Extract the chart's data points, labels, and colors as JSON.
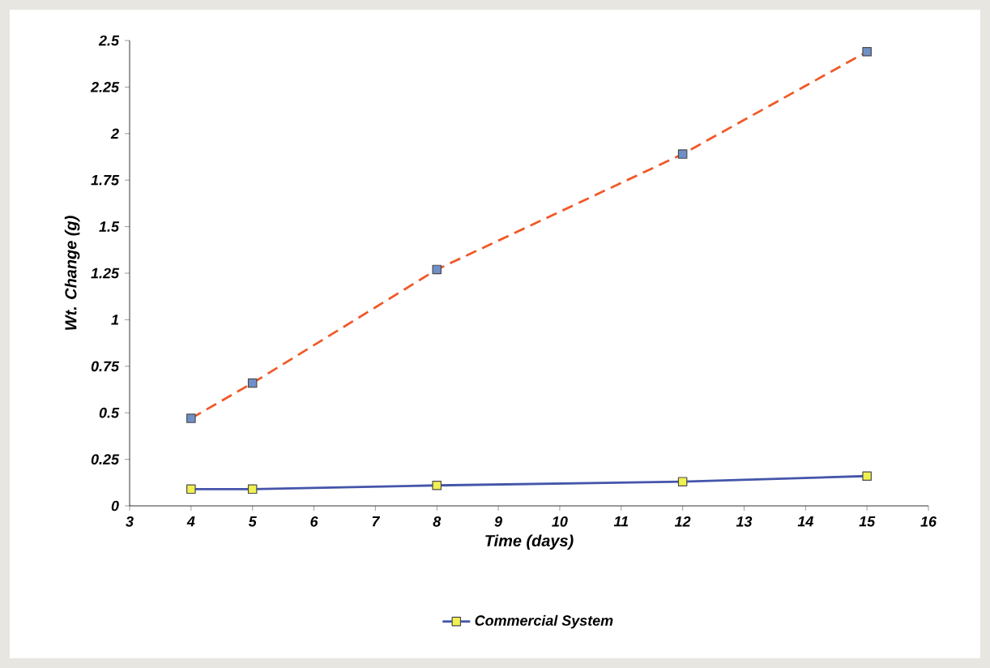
{
  "chart_data": {
    "type": "line",
    "xlabel": "Time (days)",
    "ylabel": "Wt. Change (g)",
    "xlim": [
      3,
      16
    ],
    "xticks": [
      3,
      4,
      5,
      6,
      7,
      8,
      9,
      10,
      11,
      12,
      13,
      14,
      15,
      16
    ],
    "ylim": [
      0,
      2.5
    ],
    "yticks": [
      0,
      0.25,
      0.5,
      0.75,
      1,
      1.25,
      1.5,
      1.75,
      2,
      2.25,
      2.5
    ],
    "marker": "square",
    "legend": "bottom",
    "grid": false,
    "series": [
      {
        "color": "#f05a28",
        "line_style": "dashed",
        "x": [
          4,
          5,
          8,
          12,
          15
        ],
        "values": [
          0.47,
          0.66,
          1.27,
          1.89,
          2.44
        ]
      },
      {
        "name": "Commercial System",
        "color": "#4455aa",
        "line_style": "solid",
        "x": [
          4,
          5,
          8,
          12,
          15
        ],
        "values": [
          0.09,
          0.09,
          0.11,
          0.13,
          0.16
        ]
      }
    ]
  }
}
